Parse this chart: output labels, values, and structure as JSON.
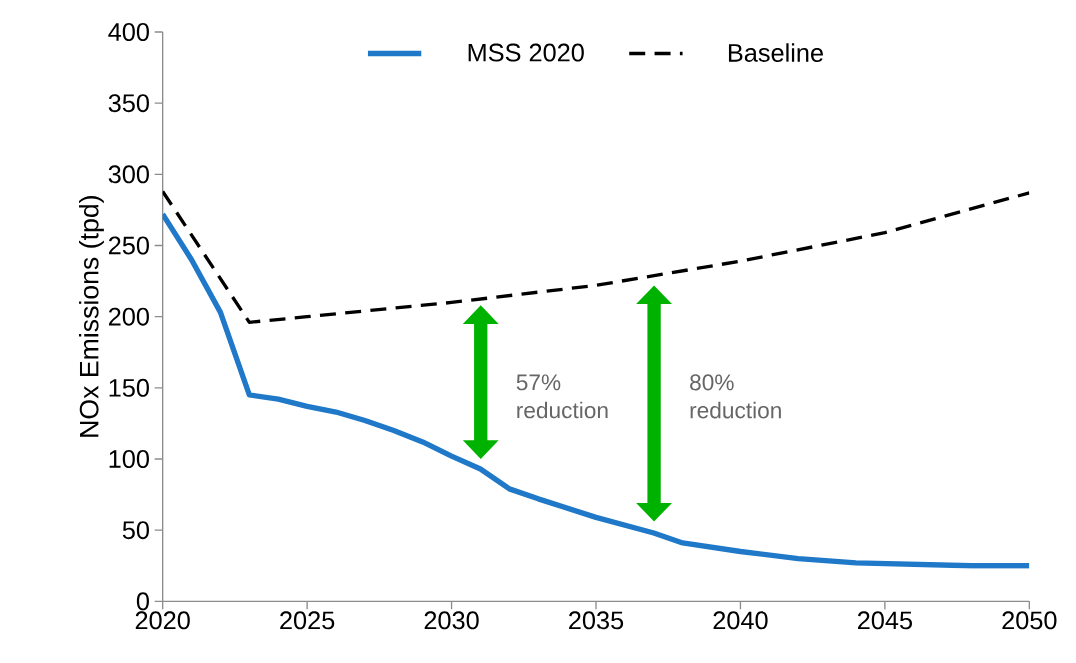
{
  "chart_data": {
    "type": "line",
    "ylabel": "NOx Emissions (tpd)",
    "xlim": [
      2020,
      2050
    ],
    "ylim": [
      0,
      400
    ],
    "xticks": [
      2020,
      2025,
      2030,
      2035,
      2040,
      2045,
      2050
    ],
    "yticks": [
      0,
      50,
      100,
      150,
      200,
      250,
      300,
      350,
      400
    ],
    "grid": false,
    "legend": "top",
    "marker": "none",
    "series": [
      {
        "name": "MSS 2020",
        "color": "#1f78c8",
        "line_style": "solid",
        "x": [
          2020,
          2021,
          2022,
          2023,
          2024,
          2025,
          2026,
          2027,
          2028,
          2029,
          2030,
          2031,
          2032,
          2033,
          2035,
          2037,
          2038,
          2040,
          2042,
          2044,
          2046,
          2048,
          2050
        ],
        "values": [
          272,
          240,
          203,
          145,
          142,
          137,
          133,
          127,
          120,
          112,
          102,
          93,
          79,
          72,
          59,
          48,
          41,
          35,
          30,
          27,
          26,
          25,
          25
        ]
      },
      {
        "name": "Baseline",
        "color": "#000000",
        "line_style": "dashed",
        "x": [
          2020,
          2023,
          2025,
          2030,
          2035,
          2040,
          2045,
          2050
        ],
        "values": [
          288,
          196,
          200,
          210,
          222,
          239,
          259,
          287
        ]
      }
    ],
    "annotations": [
      "57% reduction",
      "80% reduction"
    ]
  }
}
